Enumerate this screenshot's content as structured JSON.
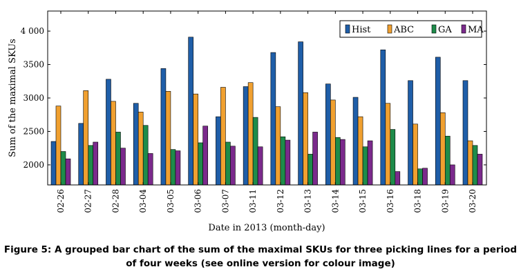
{
  "caption": "Figure 5: A grouped bar chart of the sum of the maximal SKUs for three picking lines for a period of four weeks (see online version for colour image)",
  "colors": {
    "Hist": "#1f5ea8",
    "ABC": "#f0a030",
    "GA": "#1e8c4a",
    "MA": "#7b2a8c"
  },
  "chart_data": {
    "type": "bar",
    "title": "",
    "xlabel": "Date in 2013 (month-day)",
    "ylabel": "Sum of the maximal SKUs",
    "ylim": [
      1700,
      4300
    ],
    "yticks": [
      2000,
      2500,
      3000,
      3500,
      4000
    ],
    "ytick_labels": [
      "2000",
      "2500",
      "3000",
      "3500",
      "4 000"
    ],
    "legend_position": "top-right",
    "grid": false,
    "categories": [
      "02-26",
      "02-27",
      "02-28",
      "03-04",
      "03-05",
      "03-06",
      "03-07",
      "03-11",
      "03-12",
      "03-13",
      "03-14",
      "03-15",
      "03-16",
      "03-18",
      "03-19",
      "03-20"
    ],
    "series": [
      {
        "name": "Hist",
        "values": [
          2350,
          2620,
          3280,
          2920,
          3440,
          3910,
          2720,
          3170,
          3680,
          3840,
          3210,
          3010,
          3720,
          3260,
          3610,
          3260
        ]
      },
      {
        "name": "ABC",
        "values": [
          2880,
          3110,
          2950,
          2790,
          3100,
          3060,
          3160,
          3230,
          2870,
          3080,
          2970,
          2720,
          2920,
          2610,
          2780,
          2360
        ]
      },
      {
        "name": "GA",
        "values": [
          2200,
          2290,
          2490,
          2590,
          2230,
          2330,
          2340,
          2710,
          2420,
          2160,
          2410,
          2270,
          2530,
          1940,
          2430,
          2290
        ]
      },
      {
        "name": "MA",
        "values": [
          2090,
          2340,
          2250,
          2170,
          2210,
          2580,
          2280,
          2270,
          2370,
          2490,
          2380,
          2360,
          1900,
          1950,
          2000,
          2160
        ]
      }
    ]
  }
}
